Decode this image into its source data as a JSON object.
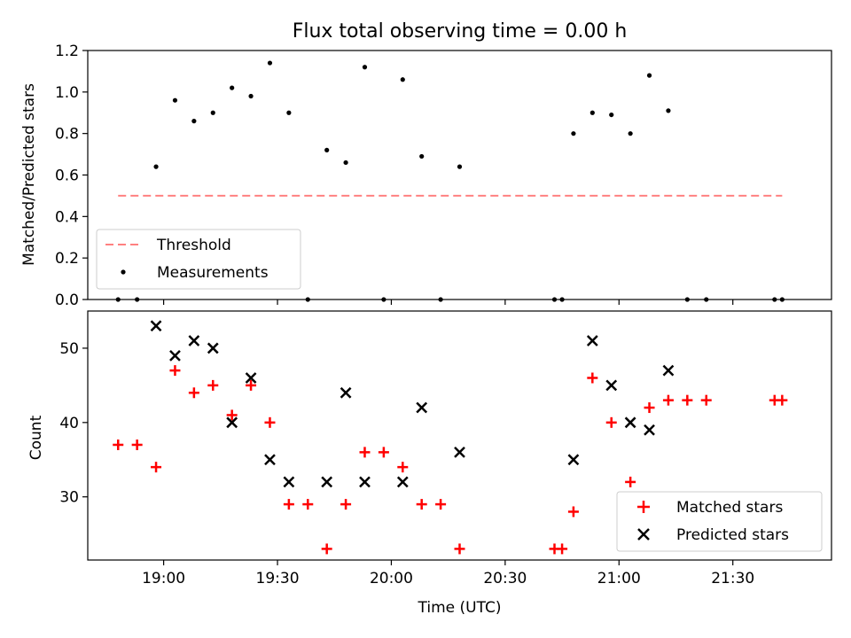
{
  "chart_data": [
    {
      "type": "scatter",
      "title": "Flux total observing time = 0.00 h",
      "ylabel": "Matched/Predicted stars",
      "xlabel": "",
      "ylim": [
        0,
        1.2
      ],
      "yticks": [
        "0.0",
        "0.2",
        "0.4",
        "0.6",
        "0.8",
        "1.0",
        "1.2"
      ],
      "legend_position": "lower-left",
      "series": [
        {
          "name": "Threshold",
          "kind": "dashed-line",
          "color": "#ff8080",
          "x": [
            "18:48",
            "21:43"
          ],
          "y": [
            0.5,
            0.5
          ]
        },
        {
          "name": "Measurements",
          "kind": "points",
          "color": "#000000",
          "x": [
            "18:48",
            "18:53",
            "18:58",
            "19:03",
            "19:08",
            "19:13",
            "19:18",
            "19:23",
            "19:28",
            "19:33",
            "19:38",
            "19:43",
            "19:48",
            "19:53",
            "19:58",
            "20:03",
            "20:08",
            "20:13",
            "20:18",
            "20:43",
            "20:45",
            "20:48",
            "20:53",
            "20:58",
            "21:03",
            "21:08",
            "21:13",
            "21:18",
            "21:23",
            "21:41",
            "21:43"
          ],
          "y": [
            0.0,
            0.0,
            0.64,
            0.96,
            0.86,
            0.9,
            1.02,
            0.98,
            1.14,
            0.9,
            0.0,
            0.72,
            0.66,
            1.12,
            0.0,
            1.06,
            0.69,
            0.0,
            0.64,
            0.0,
            0.0,
            0.8,
            0.9,
            0.89,
            0.8,
            1.08,
            0.91,
            0.0,
            0.0,
            0.0,
            0.0
          ]
        }
      ]
    },
    {
      "type": "scatter",
      "title": "",
      "ylabel": "Count",
      "xlabel": "Time (UTC)",
      "ylim": [
        21.5,
        55
      ],
      "yticks": [
        "30",
        "40",
        "50"
      ],
      "xlim": [
        "18:40",
        "21:56"
      ],
      "xticks": [
        "19:00",
        "19:30",
        "20:00",
        "20:30",
        "21:00",
        "21:30"
      ],
      "legend_position": "lower-right",
      "series": [
        {
          "name": "Matched stars",
          "kind": "plus",
          "color": "#ff0000",
          "x": [
            "18:48",
            "18:53",
            "18:58",
            "19:03",
            "19:08",
            "19:13",
            "19:18",
            "19:23",
            "19:28",
            "19:33",
            "19:38",
            "19:43",
            "19:48",
            "19:53",
            "19:58",
            "20:03",
            "20:08",
            "20:13",
            "20:18",
            "20:43",
            "20:45",
            "20:48",
            "20:53",
            "20:58",
            "21:03",
            "21:08",
            "21:13",
            "21:18",
            "21:23",
            "21:41",
            "21:43"
          ],
          "y": [
            37,
            37,
            34,
            47,
            44,
            45,
            41,
            45,
            40,
            29,
            29,
            23,
            29,
            36,
            36,
            34,
            29,
            29,
            23,
            23,
            23,
            28,
            46,
            40,
            32,
            42,
            43,
            43,
            43,
            43,
            43
          ]
        },
        {
          "name": "Predicted stars",
          "kind": "x",
          "color": "#000000",
          "x": [
            "18:58",
            "19:03",
            "19:08",
            "19:13",
            "19:18",
            "19:23",
            "19:28",
            "19:33",
            "19:43",
            "19:48",
            "19:53",
            "20:03",
            "20:08",
            "20:18",
            "20:48",
            "20:53",
            "20:58",
            "21:03",
            "21:08",
            "21:13"
          ],
          "y": [
            53,
            49,
            51,
            50,
            40,
            46,
            35,
            32,
            32,
            44,
            32,
            32,
            42,
            36,
            35,
            51,
            45,
            40,
            39,
            47
          ]
        }
      ]
    }
  ]
}
